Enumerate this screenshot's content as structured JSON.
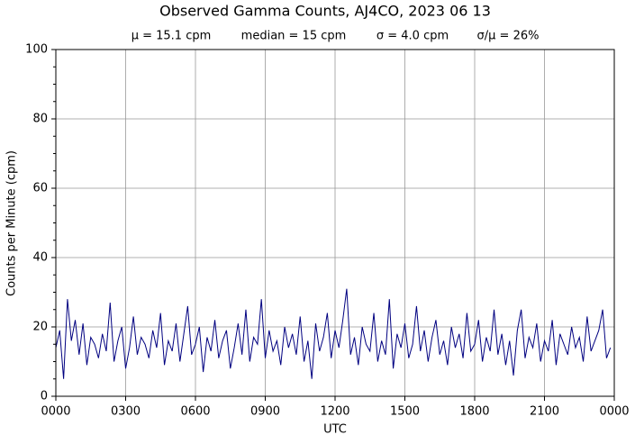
{
  "chart_data": {
    "type": "line",
    "title": "Observed Gamma Counts, AJ4CO, 2023 06 13",
    "stats": [
      "μ = 15.1 cpm",
      "median = 15 cpm",
      "σ = 4.0 cpm",
      "σ/μ = 26%"
    ],
    "xlabel": "UTC",
    "ylabel": "Counts per Minute (cpm)",
    "xlim": [
      0,
      1440
    ],
    "ylim": [
      0,
      100
    ],
    "xticks": [
      {
        "value": 0,
        "label": "0000"
      },
      {
        "value": 180,
        "label": "0300"
      },
      {
        "value": 360,
        "label": "0600"
      },
      {
        "value": 540,
        "label": "0900"
      },
      {
        "value": 720,
        "label": "1200"
      },
      {
        "value": 900,
        "label": "1500"
      },
      {
        "value": 1080,
        "label": "1800"
      },
      {
        "value": 1260,
        "label": "2100"
      },
      {
        "value": 1440,
        "label": "0000"
      }
    ],
    "yticks": [
      0,
      20,
      40,
      60,
      80,
      100
    ],
    "yminorticks": [
      5,
      10,
      15,
      25,
      30,
      35,
      45,
      50,
      55,
      65,
      70,
      75,
      85,
      90,
      95
    ],
    "grid": true,
    "series": [
      {
        "color": "#000080",
        "x": [
          0,
          10,
          20,
          30,
          40,
          50,
          60,
          70,
          80,
          90,
          100,
          110,
          120,
          130,
          140,
          150,
          160,
          170,
          180,
          190,
          200,
          210,
          220,
          230,
          240,
          250,
          260,
          270,
          280,
          290,
          300,
          310,
          320,
          330,
          340,
          350,
          360,
          370,
          380,
          390,
          400,
          410,
          420,
          430,
          440,
          450,
          460,
          470,
          480,
          490,
          500,
          510,
          520,
          530,
          540,
          550,
          560,
          570,
          580,
          590,
          600,
          610,
          620,
          630,
          640,
          650,
          660,
          670,
          680,
          690,
          700,
          710,
          720,
          730,
          740,
          750,
          760,
          770,
          780,
          790,
          800,
          810,
          820,
          830,
          840,
          850,
          860,
          870,
          880,
          890,
          900,
          910,
          920,
          930,
          940,
          950,
          960,
          970,
          980,
          990,
          1000,
          1010,
          1020,
          1030,
          1040,
          1050,
          1060,
          1070,
          1080,
          1090,
          1100,
          1110,
          1120,
          1130,
          1140,
          1150,
          1160,
          1170,
          1180,
          1190,
          1200,
          1210,
          1220,
          1230,
          1240,
          1250,
          1260,
          1270,
          1280,
          1290,
          1300,
          1310,
          1320,
          1330,
          1340,
          1350,
          1360,
          1370,
          1380,
          1390,
          1400,
          1410,
          1420,
          1430
        ],
        "values": [
          14,
          19,
          5,
          28,
          16,
          22,
          12,
          21,
          9,
          17,
          15,
          11,
          18,
          13,
          27,
          10,
          16,
          20,
          8,
          14,
          23,
          12,
          17,
          15,
          11,
          19,
          14,
          24,
          9,
          16,
          13,
          21,
          10,
          18,
          26,
          12,
          15,
          20,
          7,
          17,
          13,
          22,
          11,
          16,
          19,
          8,
          14,
          21,
          12,
          25,
          10,
          17,
          15,
          28,
          11,
          19,
          13,
          16,
          9,
          20,
          14,
          18,
          12,
          23,
          10,
          16,
          5,
          21,
          13,
          17,
          24,
          11,
          19,
          14,
          22,
          31,
          12,
          17,
          9,
          20,
          15,
          13,
          24,
          10,
          16,
          12,
          28,
          8,
          18,
          14,
          21,
          11,
          15,
          26,
          13,
          19,
          10,
          17,
          22,
          12,
          16,
          9,
          20,
          14,
          18,
          11,
          24,
          13,
          15,
          22,
          10,
          17,
          13,
          25,
          12,
          18,
          9,
          16,
          6,
          19,
          25,
          11,
          17,
          14,
          21,
          10,
          16,
          13,
          22,
          9,
          18,
          15,
          12,
          20,
          14,
          17,
          10,
          23,
          13,
          16,
          19,
          25,
          11,
          14
        ]
      }
    ]
  }
}
